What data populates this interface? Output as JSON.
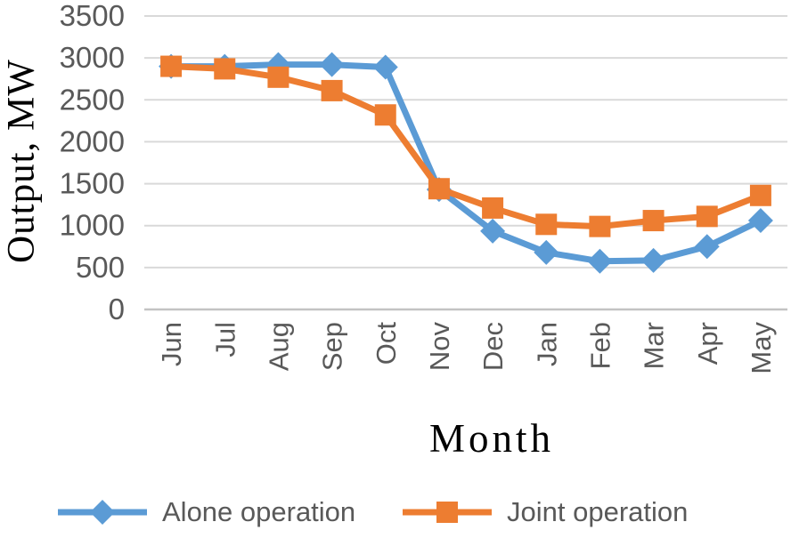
{
  "chart_data": {
    "type": "line",
    "title": "",
    "xlabel": "Month",
    "ylabel": "Output, MW",
    "categories": [
      "Jun",
      "Jul",
      "Aug",
      "Sep",
      "Oct",
      "Nov",
      "Dec",
      "Jan",
      "Feb",
      "Mar",
      "Apr",
      "May"
    ],
    "series": [
      {
        "name": "Alone operation",
        "marker": "diamond",
        "color": "#5B9BD5",
        "values": [
          2900,
          2900,
          2920,
          2920,
          2890,
          1430,
          935,
          680,
          575,
          585,
          750,
          1060
        ]
      },
      {
        "name": "Joint operation",
        "marker": "square",
        "color": "#ED7D31",
        "values": [
          2900,
          2870,
          2770,
          2610,
          2320,
          1440,
          1210,
          1015,
          990,
          1060,
          1110,
          1360
        ]
      }
    ],
    "ylim": [
      0,
      3500
    ],
    "ytick_step": 500,
    "grid": "horizontal",
    "legend_position": "bottom"
  },
  "style_colors": {
    "gridline": "#D9D9D9",
    "axis_line": "#C3C3C3",
    "tick_text": "#595959",
    "axis_title_text": "#000000",
    "legend_text": "#595959"
  }
}
